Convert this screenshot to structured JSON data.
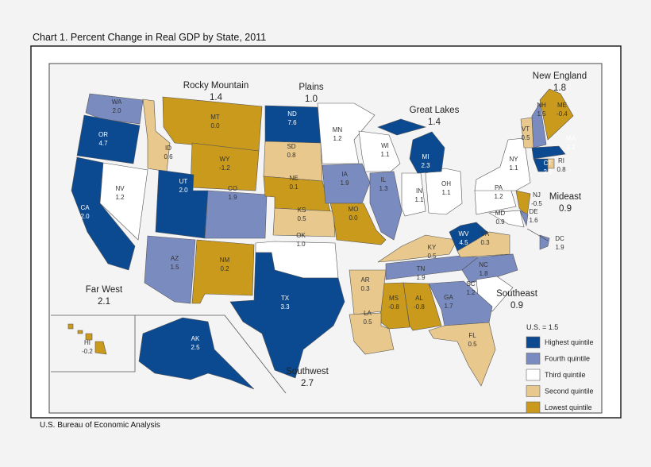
{
  "title": "Chart 1. Percent Change in Real GDP by State, 2011",
  "source": "U.S. Bureau of Economic Analysis",
  "us_value_label": "U.S. = 1.5",
  "legend": [
    {
      "key": "highest",
      "label": "Highest quintile",
      "color": "#0b4a91"
    },
    {
      "key": "fourth",
      "label": "Fourth quintile",
      "color": "#7a8bc0"
    },
    {
      "key": "third",
      "label": "Third quintile",
      "color": "#ffffff"
    },
    {
      "key": "second",
      "label": "Second quintile",
      "color": "#e8c88c"
    },
    {
      "key": "lowest",
      "label": "Lowest quintile",
      "color": "#c99a1c"
    }
  ],
  "regions": [
    {
      "name": "Rocky Mountain",
      "value": "1.4"
    },
    {
      "name": "Plains",
      "value": "1.0"
    },
    {
      "name": "Great Lakes",
      "value": "1.4"
    },
    {
      "name": "New England",
      "value": "1.8"
    },
    {
      "name": "Mideast",
      "value": "0.9"
    },
    {
      "name": "Southeast",
      "value": "0.9"
    },
    {
      "name": "Far West",
      "value": "2.1"
    },
    {
      "name": "Southwest",
      "value": "2.7"
    }
  ],
  "states": [
    {
      "abbr": "WA",
      "value": "2.0",
      "quintile": "fourth"
    },
    {
      "abbr": "OR",
      "value": "4.7",
      "quintile": "highest"
    },
    {
      "abbr": "CA",
      "value": "2.0",
      "quintile": "highest"
    },
    {
      "abbr": "NV",
      "value": "1.2",
      "quintile": "third"
    },
    {
      "abbr": "ID",
      "value": "0.6",
      "quintile": "second"
    },
    {
      "abbr": "MT",
      "value": "0.0",
      "quintile": "lowest"
    },
    {
      "abbr": "WY",
      "value": "-1.2",
      "quintile": "lowest"
    },
    {
      "abbr": "UT",
      "value": "2.0",
      "quintile": "highest"
    },
    {
      "abbr": "CO",
      "value": "1.9",
      "quintile": "fourth"
    },
    {
      "abbr": "AZ",
      "value": "1.5",
      "quintile": "fourth"
    },
    {
      "abbr": "NM",
      "value": "0.2",
      "quintile": "lowest"
    },
    {
      "abbr": "ND",
      "value": "7.6",
      "quintile": "highest"
    },
    {
      "abbr": "SD",
      "value": "0.8",
      "quintile": "second"
    },
    {
      "abbr": "NE",
      "value": "0.1",
      "quintile": "lowest"
    },
    {
      "abbr": "KS",
      "value": "0.5",
      "quintile": "second"
    },
    {
      "abbr": "OK",
      "value": "1.0",
      "quintile": "third"
    },
    {
      "abbr": "TX",
      "value": "3.3",
      "quintile": "highest"
    },
    {
      "abbr": "MN",
      "value": "1.2",
      "quintile": "third"
    },
    {
      "abbr": "IA",
      "value": "1.9",
      "quintile": "fourth"
    },
    {
      "abbr": "MO",
      "value": "0.0",
      "quintile": "lowest"
    },
    {
      "abbr": "WI",
      "value": "1.1",
      "quintile": "third"
    },
    {
      "abbr": "IL",
      "value": "1.3",
      "quintile": "fourth"
    },
    {
      "abbr": "IN",
      "value": "1.1",
      "quintile": "third"
    },
    {
      "abbr": "OH",
      "value": "1.1",
      "quintile": "third"
    },
    {
      "abbr": "MI",
      "value": "2.3",
      "quintile": "highest"
    },
    {
      "abbr": "KY",
      "value": "0.5",
      "quintile": "second"
    },
    {
      "abbr": "TN",
      "value": "1.9",
      "quintile": "fourth"
    },
    {
      "abbr": "WV",
      "value": "4.5",
      "quintile": "highest"
    },
    {
      "abbr": "VA",
      "value": "0.3",
      "quintile": "second"
    },
    {
      "abbr": "NC",
      "value": "1.8",
      "quintile": "fourth"
    },
    {
      "abbr": "SC",
      "value": "1.2",
      "quintile": "third"
    },
    {
      "abbr": "GA",
      "value": "1.7",
      "quintile": "fourth"
    },
    {
      "abbr": "AL",
      "value": "-0.8",
      "quintile": "lowest"
    },
    {
      "abbr": "MS",
      "value": "-0.8",
      "quintile": "lowest"
    },
    {
      "abbr": "AR",
      "value": "0.3",
      "quintile": "second"
    },
    {
      "abbr": "LA",
      "value": "0.5",
      "quintile": "second"
    },
    {
      "abbr": "FL",
      "value": "0.5",
      "quintile": "second"
    },
    {
      "abbr": "PA",
      "value": "1.2",
      "quintile": "third"
    },
    {
      "abbr": "NY",
      "value": "1.1",
      "quintile": "third"
    },
    {
      "abbr": "NJ",
      "value": "-0.5",
      "quintile": "lowest"
    },
    {
      "abbr": "DE",
      "value": "1.6",
      "quintile": "fourth"
    },
    {
      "abbr": "MD",
      "value": "0.9",
      "quintile": "third"
    },
    {
      "abbr": "DC",
      "value": "1.9",
      "quintile": "fourth"
    },
    {
      "abbr": "VT",
      "value": "0.5",
      "quintile": "second"
    },
    {
      "abbr": "NH",
      "value": "1.5",
      "quintile": "fourth"
    },
    {
      "abbr": "ME",
      "value": "-0.4",
      "quintile": "lowest"
    },
    {
      "abbr": "MA",
      "value": "2.2",
      "quintile": "highest"
    },
    {
      "abbr": "CT",
      "value": "2.0",
      "quintile": "highest"
    },
    {
      "abbr": "RI",
      "value": "0.8",
      "quintile": "second"
    },
    {
      "abbr": "AK",
      "value": "2.5",
      "quintile": "highest"
    },
    {
      "abbr": "HI",
      "value": "-0.2",
      "quintile": "lowest"
    }
  ]
}
